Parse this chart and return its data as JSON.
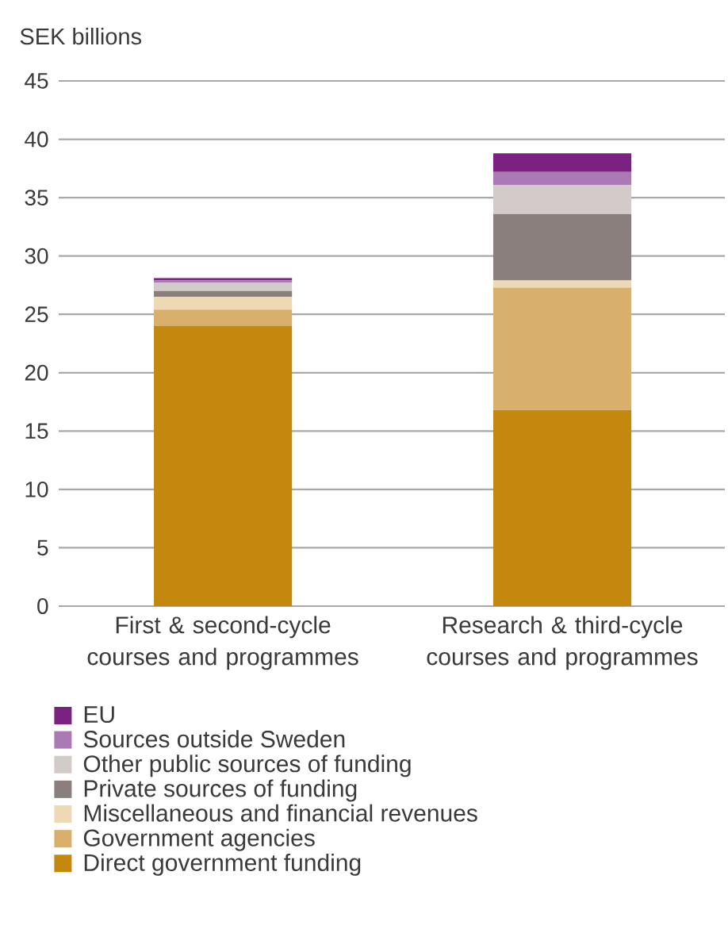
{
  "chart_data": {
    "type": "bar",
    "stacked": true,
    "ylabel": "SEK billions",
    "categories": [
      "First & second-cycle courses and programmes",
      "Research & third-cycle courses and programmes"
    ],
    "series": [
      {
        "name": "Direct government funding",
        "color": "#c4880e",
        "values": [
          24.0,
          16.8
        ]
      },
      {
        "name": "Government agencies",
        "color": "#d9b06b",
        "values": [
          1.4,
          10.5
        ]
      },
      {
        "name": "Miscellaneous and financial revenues",
        "color": "#eed9b5",
        "values": [
          1.1,
          0.6
        ]
      },
      {
        "name": "Private sources of funding",
        "color": "#8a7f7c",
        "values": [
          0.5,
          5.7
        ]
      },
      {
        "name": "Other public sources of funding",
        "color": "#d3cbc9",
        "values": [
          0.7,
          2.5
        ]
      },
      {
        "name": "Sources outside Sweden",
        "color": "#ab7ab5",
        "values": [
          0.2,
          1.1
        ]
      },
      {
        "name": "EU",
        "color": "#7b2182",
        "values": [
          0.2,
          1.6
        ]
      }
    ],
    "ylim": [
      0,
      45
    ],
    "yticks": [
      0,
      5,
      10,
      15,
      20,
      25,
      30,
      35,
      40,
      45
    ],
    "grid": "y",
    "legend": "bottom"
  }
}
